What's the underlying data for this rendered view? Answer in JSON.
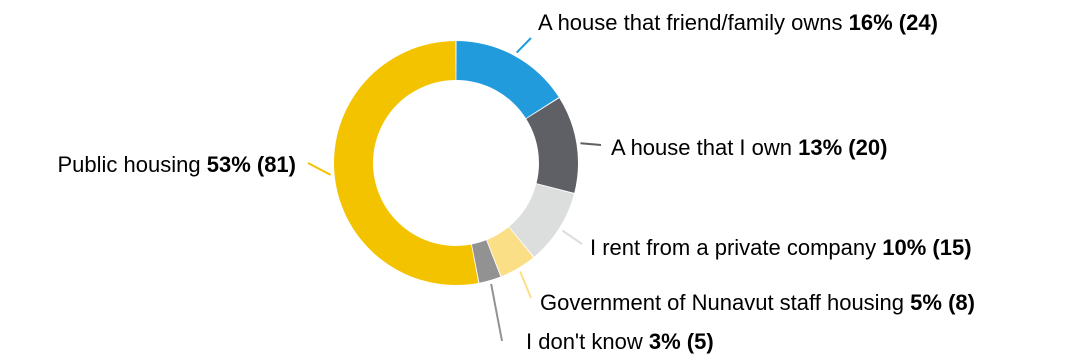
{
  "chart_data": {
    "type": "pie",
    "variant": "donut",
    "start": "top",
    "direction": "clockwise",
    "slices": [
      {
        "label": "A house that friend/family owns",
        "percent_label": "16% (24)",
        "percent": 16,
        "count": 24,
        "color": "#219bdc"
      },
      {
        "label": "A house that I own",
        "percent_label": "13% (20)",
        "percent": 13,
        "count": 20,
        "color": "#5f6065"
      },
      {
        "label": "I rent from a private company",
        "percent_label": "10% (15)",
        "percent": 10,
        "count": 15,
        "color": "#dcdddd"
      },
      {
        "label": "Government of Nunavut staff housing",
        "percent_label": "5% (8)",
        "percent": 5,
        "count": 8,
        "color": "#fbdf87"
      },
      {
        "label": "I don't know",
        "percent_label": "3% (5)",
        "percent": 3,
        "count": 5,
        "color": "#929292"
      },
      {
        "label": "Public housing",
        "percent_label": "53% (81)",
        "percent": 53,
        "count": 81,
        "color": "#f3c300"
      }
    ]
  }
}
